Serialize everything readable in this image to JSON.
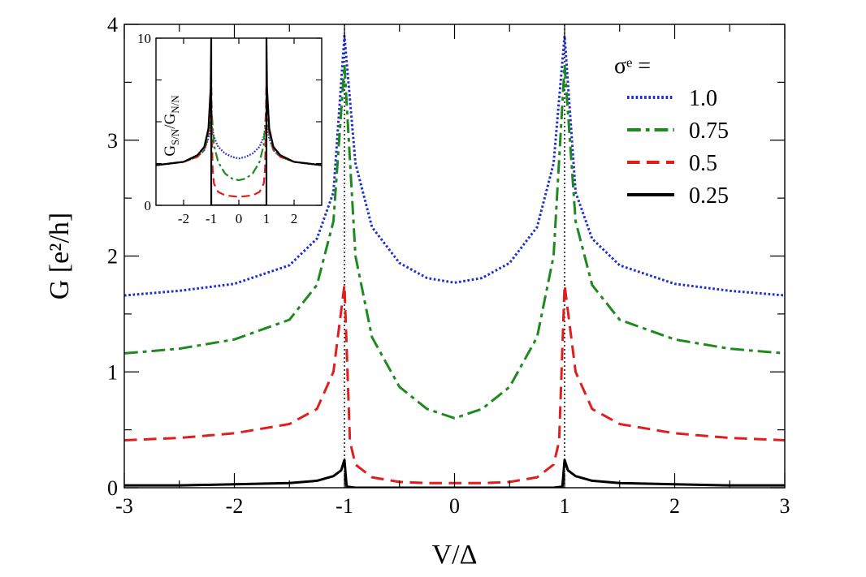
{
  "chart_data": [
    {
      "name": "main",
      "type": "line",
      "xlabel": "V/Δ",
      "ylabel": "G [e²/h]",
      "xlim": [
        -3,
        3
      ],
      "ylim": [
        0,
        4
      ],
      "xticks": [
        -3,
        -2,
        -1,
        0,
        1,
        2,
        3
      ],
      "yticks": [
        0,
        1,
        2,
        3,
        4
      ],
      "x_tick_labels": [
        "-3",
        "-2",
        "-1",
        "0",
        "1",
        "2",
        "3"
      ],
      "y_tick_labels": [
        "0",
        "1",
        "2",
        "3",
        "4"
      ],
      "reference_lines": [
        -1,
        1
      ],
      "legend": {
        "title": "σᵉ =",
        "position": "top-right"
      },
      "series": [
        {
          "name": "1.0",
          "color": "#1f2fd0",
          "style": "dotted",
          "x": [
            -3,
            -2.5,
            -2,
            -1.5,
            -1.25,
            -1.1,
            -1.0,
            -0.9,
            -0.75,
            -0.5,
            -0.25,
            0,
            0.25,
            0.5,
            0.75,
            0.9,
            1.0,
            1.1,
            1.25,
            1.5,
            2,
            2.5,
            3
          ],
          "y": [
            1.66,
            1.7,
            1.76,
            1.92,
            2.15,
            2.55,
            3.9,
            2.8,
            2.25,
            1.94,
            1.81,
            1.77,
            1.81,
            1.94,
            2.25,
            2.8,
            3.9,
            2.55,
            2.15,
            1.92,
            1.76,
            1.7,
            1.66
          ]
        },
        {
          "name": "0.75",
          "color": "#1e8a1e",
          "style": "dashdot",
          "x": [
            -3,
            -2.5,
            -2,
            -1.5,
            -1.25,
            -1.1,
            -1.0,
            -0.9,
            -0.75,
            -0.5,
            -0.25,
            0,
            0.25,
            0.5,
            0.75,
            0.9,
            1.0,
            1.1,
            1.25,
            1.5,
            2,
            2.5,
            3
          ],
          "y": [
            1.16,
            1.2,
            1.28,
            1.45,
            1.75,
            2.3,
            3.65,
            2.0,
            1.3,
            0.87,
            0.68,
            0.6,
            0.68,
            0.87,
            1.3,
            2.0,
            3.65,
            2.3,
            1.75,
            1.45,
            1.28,
            1.2,
            1.16
          ]
        },
        {
          "name": "0.5",
          "color": "#e01e1e",
          "style": "dashed",
          "x": [
            -3,
            -2.5,
            -2,
            -1.5,
            -1.25,
            -1.1,
            -1.0,
            -0.95,
            -0.9,
            -0.75,
            -0.5,
            -0.25,
            0,
            0.25,
            0.5,
            0.75,
            0.9,
            0.95,
            1.0,
            1.1,
            1.25,
            1.5,
            2,
            2.5,
            3
          ],
          "y": [
            0.41,
            0.43,
            0.47,
            0.55,
            0.68,
            1.0,
            1.75,
            0.4,
            0.2,
            0.09,
            0.05,
            0.04,
            0.04,
            0.04,
            0.05,
            0.09,
            0.2,
            0.4,
            1.75,
            1.0,
            0.68,
            0.55,
            0.47,
            0.43,
            0.41
          ]
        },
        {
          "name": "0.25",
          "color": "#000000",
          "style": "solid",
          "x": [
            -3,
            -2.5,
            -2,
            -1.5,
            -1.25,
            -1.1,
            -1.03,
            -1.0,
            -0.98,
            -0.9,
            -0.5,
            0,
            0.5,
            0.9,
            0.98,
            1.0,
            1.03,
            1.1,
            1.25,
            1.5,
            2,
            2.5,
            3
          ],
          "y": [
            0.02,
            0.02,
            0.03,
            0.04,
            0.06,
            0.1,
            0.15,
            0.24,
            0.01,
            0.0,
            0.0,
            0.0,
            0.0,
            0.0,
            0.01,
            0.24,
            0.15,
            0.1,
            0.06,
            0.04,
            0.03,
            0.02,
            0.02
          ]
        }
      ]
    },
    {
      "name": "inset",
      "type": "line",
      "ylabel": "G_S/N / G_N/N",
      "ylabel_main": "G",
      "ylabel_sub1": "S/N",
      "ylabel_slash": "/G",
      "ylabel_sub2": "N/N",
      "xlim": [
        -3,
        3
      ],
      "ylim": [
        0,
        10
      ],
      "xticks": [
        -2,
        -1,
        0,
        1,
        2
      ],
      "yticks": [
        0,
        10
      ],
      "x_tick_labels": [
        "-2",
        "-1",
        "0",
        "1",
        "2"
      ],
      "y_tick_labels": [
        "0",
        "10"
      ],
      "series": [
        {
          "name": "1.0",
          "color": "#1f2fd0",
          "style": "dotted",
          "x": [
            -3,
            -2.5,
            -2,
            -1.5,
            -1.25,
            -1.1,
            -1.0,
            -0.9,
            -0.75,
            -0.5,
            -0.25,
            0,
            0.25,
            0.5,
            0.75,
            0.9,
            1.0,
            1.1,
            1.25,
            1.5,
            2,
            2.5,
            3
          ],
          "y": [
            2.4,
            2.5,
            2.6,
            2.9,
            3.3,
            4.0,
            4.9,
            4.1,
            3.5,
            3.1,
            2.9,
            2.8,
            2.9,
            3.1,
            3.5,
            4.1,
            4.9,
            4.0,
            3.3,
            2.9,
            2.6,
            2.5,
            2.4
          ]
        },
        {
          "name": "0.75",
          "color": "#1e8a1e",
          "style": "dashdot",
          "x": [
            -3,
            -2.5,
            -2,
            -1.5,
            -1.25,
            -1.1,
            -1.0,
            -0.9,
            -0.75,
            -0.5,
            -0.25,
            0,
            0.25,
            0.5,
            0.75,
            0.9,
            1.0,
            1.1,
            1.25,
            1.5,
            2,
            2.5,
            3
          ],
          "y": [
            2.4,
            2.5,
            2.6,
            2.9,
            3.3,
            4.2,
            6.0,
            3.6,
            2.6,
            1.9,
            1.6,
            1.5,
            1.6,
            1.9,
            2.6,
            3.6,
            6.0,
            4.2,
            3.3,
            2.9,
            2.6,
            2.5,
            2.4
          ]
        },
        {
          "name": "0.5",
          "color": "#e01e1e",
          "style": "dashed",
          "x": [
            -3,
            -2.5,
            -2,
            -1.5,
            -1.25,
            -1.1,
            -1.0,
            -0.95,
            -0.9,
            -0.75,
            -0.5,
            -0.25,
            0,
            0.25,
            0.5,
            0.75,
            0.9,
            0.95,
            1.0,
            1.1,
            1.25,
            1.5,
            2,
            2.5,
            3
          ],
          "y": [
            2.4,
            2.5,
            2.6,
            2.9,
            3.4,
            4.4,
            7.5,
            2.2,
            1.3,
            0.8,
            0.6,
            0.55,
            0.5,
            0.55,
            0.6,
            0.8,
            1.3,
            2.2,
            7.5,
            4.4,
            3.4,
            2.9,
            2.6,
            2.5,
            2.4
          ]
        },
        {
          "name": "0.25",
          "color": "#000000",
          "style": "solid",
          "x": [
            -3,
            -2.5,
            -2,
            -1.5,
            -1.25,
            -1.1,
            -1.02,
            -1.0,
            -0.999,
            -0.9,
            -0.5,
            0,
            0.5,
            0.9,
            0.999,
            1.0,
            1.02,
            1.1,
            1.25,
            1.5,
            2,
            2.5,
            3
          ],
          "y": [
            2.4,
            2.5,
            2.6,
            3.0,
            3.5,
            4.6,
            7.0,
            10,
            0.0,
            0.0,
            0.0,
            0.0,
            0.0,
            0.0,
            0.0,
            10,
            7.0,
            4.6,
            3.5,
            3.0,
            2.6,
            2.5,
            2.4
          ]
        }
      ]
    }
  ]
}
